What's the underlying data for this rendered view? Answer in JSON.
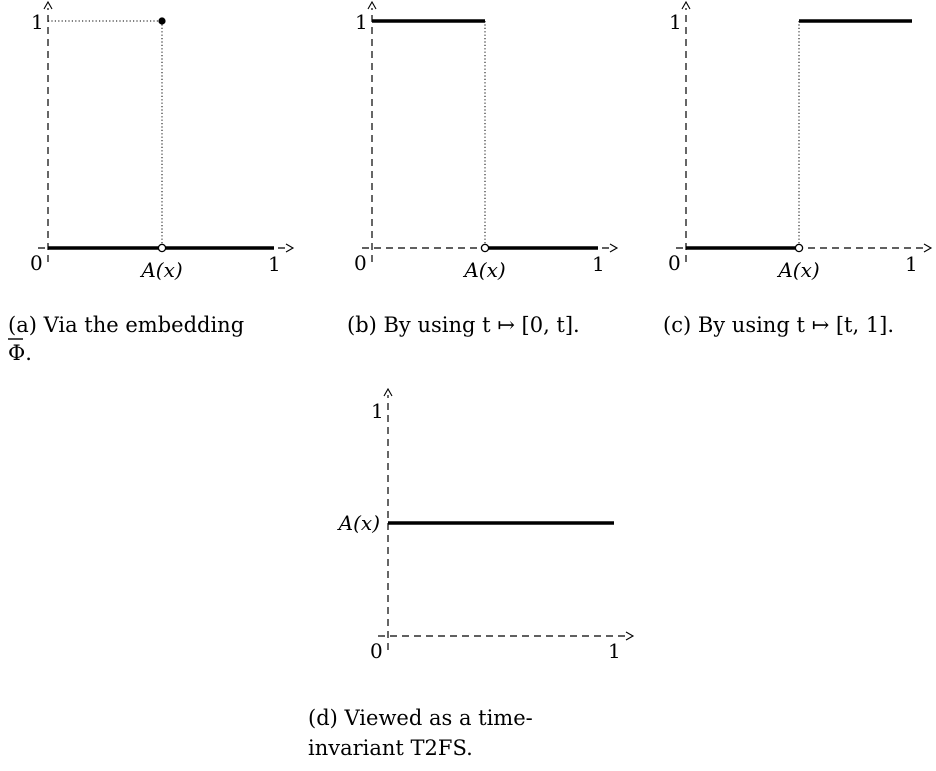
{
  "panels": {
    "a": {
      "caption_line1": "(a)  Via  the  embedding",
      "caption_line2": "Φ.",
      "tick_one": "1",
      "tick_zero": "0",
      "tick_x_one": "1",
      "point_label": "A(x)"
    },
    "b": {
      "caption": "(b) By using t ↦ [0, t].",
      "tick_one": "1",
      "tick_zero": "0",
      "tick_x_one": "1",
      "point_label": "A(x)"
    },
    "c": {
      "caption": "(c) By using t ↦ [t, 1].",
      "tick_one": "1",
      "tick_zero": "0",
      "tick_x_one": "1",
      "point_label": "A(x)"
    },
    "d": {
      "caption_line1": "(d)  Viewed   as   a   time-",
      "caption_line2": "invariant T2FS.",
      "tick_one": "1",
      "tick_zero": "0",
      "tick_x_one": "1",
      "y_level_label": "A(x)"
    }
  }
}
